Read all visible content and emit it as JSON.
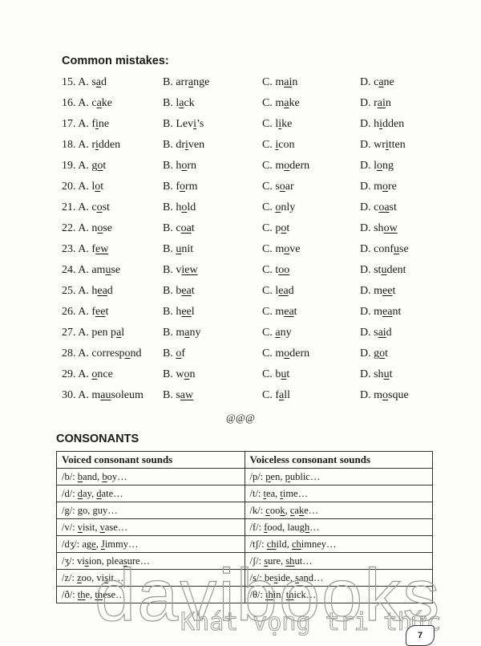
{
  "mistakes": {
    "title": "Common mistakes:",
    "rows": [
      {
        "num": "15. ",
        "options": [
          [
            "A. s",
            "a",
            "d"
          ],
          [
            "B. arr",
            "a",
            "nge"
          ],
          [
            "C. m",
            "ai",
            "n"
          ],
          [
            "D. c",
            "a",
            "ne"
          ]
        ]
      },
      {
        "num": "16. ",
        "options": [
          [
            "A. c",
            "a",
            "ke"
          ],
          [
            "B. l",
            "a",
            "ck"
          ],
          [
            "C. m",
            "a",
            "ke"
          ],
          [
            "D. r",
            "ai",
            "n"
          ]
        ]
      },
      {
        "num": "17. ",
        "options": [
          [
            "A. f",
            "i",
            "ne"
          ],
          [
            "B. Lev",
            "i",
            "’s"
          ],
          [
            "C. l",
            "i",
            "ke"
          ],
          [
            "D. h",
            "i",
            "dden"
          ]
        ]
      },
      {
        "num": "18. ",
        "options": [
          [
            "A. r",
            "i",
            "dden"
          ],
          [
            "B. dr",
            "i",
            "ven"
          ],
          [
            "C. ",
            "i",
            "con"
          ],
          [
            "D. wr",
            "i",
            "tten"
          ]
        ]
      },
      {
        "num": "19. ",
        "options": [
          [
            "A. g",
            "o",
            "t"
          ],
          [
            "B. h",
            "o",
            "rn"
          ],
          [
            "C. m",
            "o",
            "dern"
          ],
          [
            "D. l",
            "o",
            "ng"
          ]
        ]
      },
      {
        "num": "20. ",
        "options": [
          [
            "A. l",
            "o",
            "t"
          ],
          [
            "B. f",
            "o",
            "rm"
          ],
          [
            "C. s",
            "o",
            "ar"
          ],
          [
            "D. m",
            "o",
            "re"
          ]
        ]
      },
      {
        "num": "21. ",
        "options": [
          [
            "A. c",
            "o",
            "st"
          ],
          [
            "B. h",
            "o",
            "ld"
          ],
          [
            "C. ",
            "o",
            "nly"
          ],
          [
            "D. c",
            "oa",
            "st"
          ]
        ]
      },
      {
        "num": "22. ",
        "options": [
          [
            "A. n",
            "o",
            "se"
          ],
          [
            "B. c",
            "oa",
            "t"
          ],
          [
            "C. p",
            "o",
            "t"
          ],
          [
            "D. sh",
            "ow",
            ""
          ]
        ]
      },
      {
        "num": "23. ",
        "options": [
          [
            "A. f",
            "ew",
            ""
          ],
          [
            "B. ",
            "u",
            "nit"
          ],
          [
            "C. m",
            "o",
            "ve"
          ],
          [
            "D. conf",
            "u",
            "se"
          ]
        ]
      },
      {
        "num": "24. ",
        "options": [
          [
            "A. am",
            "u",
            "se"
          ],
          [
            "B. v",
            "iew",
            ""
          ],
          [
            "C. t",
            "oo",
            ""
          ],
          [
            "D. st",
            "u",
            "dent"
          ]
        ]
      },
      {
        "num": "25. ",
        "options": [
          [
            "A. h",
            "ea",
            "d"
          ],
          [
            "B. b",
            "ea",
            "t"
          ],
          [
            "C. l",
            "ea",
            "d"
          ],
          [
            "D. m",
            "ee",
            "t"
          ]
        ]
      },
      {
        "num": "26. ",
        "options": [
          [
            "A. f",
            "ee",
            "t"
          ],
          [
            "B. h",
            "ee",
            "l"
          ],
          [
            "C. m",
            "ea",
            "t"
          ],
          [
            "D. m",
            "ea",
            "nt"
          ]
        ]
      },
      {
        "num": "27. ",
        "options": [
          [
            "A. pen p",
            "a",
            "l"
          ],
          [
            "B. m",
            "a",
            "ny"
          ],
          [
            "C. ",
            "a",
            "ny"
          ],
          [
            "D. s",
            "ai",
            "d"
          ]
        ]
      },
      {
        "num": "28. ",
        "options": [
          [
            "A. corresp",
            "o",
            "nd"
          ],
          [
            "B. ",
            "o",
            "f"
          ],
          [
            "C. m",
            "o",
            "dern"
          ],
          [
            "D. g",
            "o",
            "t"
          ]
        ]
      },
      {
        "num": "29. ",
        "options": [
          [
            "A. ",
            "o",
            "nce"
          ],
          [
            "B. w",
            "o",
            "n"
          ],
          [
            "C. b",
            "u",
            "t"
          ],
          [
            "D. sh",
            "u",
            "t"
          ]
        ]
      },
      {
        "num": "30. ",
        "options": [
          [
            "A. m",
            "au",
            "soleum"
          ],
          [
            "B. s",
            "aw",
            ""
          ],
          [
            "C. f",
            "a",
            "ll"
          ],
          [
            "D. m",
            "o",
            "sque"
          ]
        ]
      }
    ],
    "separator": "@@@"
  },
  "consonants": {
    "title": "CONSONANTS",
    "headers": [
      "Voiced consonant sounds",
      "Voiceless consonant sounds"
    ],
    "rows": [
      [
        [
          "/b/: ",
          "b",
          "and, ",
          "b",
          "oy…"
        ],
        [
          "/p/: ",
          "p",
          "en, ",
          "p",
          "ublic…"
        ]
      ],
      [
        [
          "/d/: ",
          "d",
          "ay, ",
          "d",
          "ate…"
        ],
        [
          "/t/: ",
          "t",
          "ea, ",
          "t",
          "ime…"
        ]
      ],
      [
        [
          "/g/: go, guy…"
        ],
        [
          "/k/: ",
          "c",
          "oo",
          "k",
          ", ",
          "c",
          "a",
          "k",
          "e…"
        ]
      ],
      [
        [
          "/v/: ",
          "v",
          "isit, ",
          "v",
          "ase…"
        ],
        [
          "/f/: ",
          "f",
          "ood, lau",
          "gh",
          "…"
        ]
      ],
      [
        [
          "/dʒ/: a",
          "ge",
          ", ",
          "J",
          "immy…"
        ],
        [
          "/tʃ/: ",
          "ch",
          "ild, ",
          "ch",
          "imney…"
        ]
      ],
      [
        [
          "/ʒ/: vi",
          "s",
          "ion, plea",
          "s",
          "ure…"
        ],
        [
          "/ʃ/: ",
          "s",
          "ure, ",
          "sh",
          "ut…"
        ]
      ],
      [
        [
          "/z/: ",
          "z",
          "oo, vi",
          "s",
          "it…"
        ],
        [
          "/s/: be",
          "s",
          "ide, ",
          "s",
          "and…"
        ]
      ],
      [
        [
          "/ð/: ",
          "th",
          "e, ",
          "th",
          "ese…"
        ],
        [
          "/θ/: ",
          "th",
          "in, ",
          "th",
          "ick…"
        ]
      ]
    ]
  },
  "watermark": {
    "brand": "davibooks",
    "slogan": "Khát vọng tri thức"
  },
  "page_number": "7"
}
